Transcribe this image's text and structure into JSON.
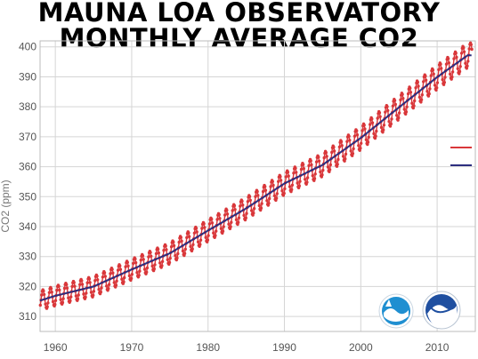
{
  "title_line1": "MAUNA LOA OBSERVATORY",
  "title_line2": "MONTHLY AVERAGE CO2",
  "chart_data": {
    "type": "line",
    "ylabel": "CO2 (ppm)",
    "xlim": [
      1958,
      2015
    ],
    "ylim": [
      305,
      402
    ],
    "xticks": [
      1960,
      1970,
      1980,
      1990,
      2000,
      2010
    ],
    "yticks": [
      310,
      320,
      330,
      340,
      350,
      360,
      370,
      380,
      390,
      400
    ],
    "grid": true,
    "legend_position": "right, partially cut off",
    "legend_labels": [
      "",
      ""
    ],
    "series": [
      {
        "kind": "monthly",
        "color": "#d9373a",
        "seasonal_amplitude_ppm": 3.3,
        "x": [
          1958,
          1960,
          1965,
          1970,
          1975,
          1980,
          1985,
          1990,
          1995,
          2000,
          2005,
          2010,
          2014
        ],
        "y": [
          315.3,
          316.9,
          320.0,
          325.7,
          331.1,
          338.7,
          346.1,
          354.4,
          360.6,
          369.6,
          379.8,
          389.9,
          397.2
        ]
      },
      {
        "kind": "trend",
        "color": "#2c2e7f",
        "x": [
          1958,
          1960,
          1965,
          1970,
          1975,
          1980,
          1985,
          1990,
          1995,
          2000,
          2005,
          2010,
          2014
        ],
        "y": [
          315.3,
          316.9,
          320.0,
          325.7,
          331.1,
          338.7,
          346.1,
          354.4,
          360.6,
          369.6,
          379.8,
          389.9,
          397.2
        ]
      }
    ]
  },
  "logos": [
    {
      "name": "esrl-logo-icon",
      "color": "#1f8fd1"
    },
    {
      "name": "noaa-logo-icon",
      "color": "#1f4fa0"
    }
  ]
}
